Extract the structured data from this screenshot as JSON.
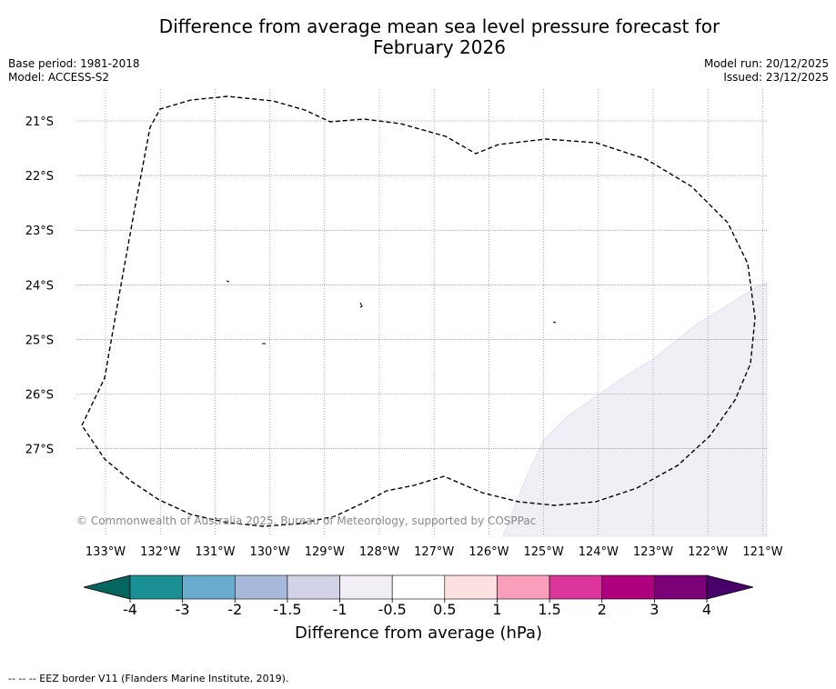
{
  "title_line1": "Difference from average mean sea level pressure forecast for",
  "title_line2": "February 2026",
  "base_period": "Base period: 1981-2018",
  "model": "Model: ACCESS-S2",
  "model_run": "Model run: 20/12/2025",
  "issued": "Issued: 23/12/2025",
  "copyright": "© Commonwealth of Australia 2025, Bureau of Meteorology, supported by COSPPac",
  "footer_note": "--  --  -- EEZ border V11 (Flanders Marine Institute, 2019).",
  "map": {
    "lon_labels": [
      "133°W",
      "132°W",
      "131°W",
      "130°W",
      "129°W",
      "128°W",
      "127°W",
      "126°W",
      "125°W",
      "124°W",
      "123°W",
      "122°W",
      "121°W"
    ],
    "lat_labels": [
      "21°S",
      "22°S",
      "23°S",
      "24°S",
      "25°S",
      "26°S",
      "27°S"
    ]
  },
  "colorbar": {
    "label": "Difference from average (hPa)",
    "ticks": [
      "-4",
      "-3",
      "-2",
      "-1.5",
      "-1",
      "-0.5",
      "0.5",
      "1",
      "1.5",
      "2",
      "3",
      "4"
    ],
    "colors": [
      "#1a8f94",
      "#6aacd0",
      "#a7b9da",
      "#d3d3e7",
      "#f2eef5",
      "#ffffff",
      "#fde1e0",
      "#f99fbb",
      "#dc369d",
      "#ae017e",
      "#7a0177"
    ],
    "extend_low_color": "#05665f",
    "extend_high_color": "#49006a",
    "shade_color": "#f2eef5"
  }
}
